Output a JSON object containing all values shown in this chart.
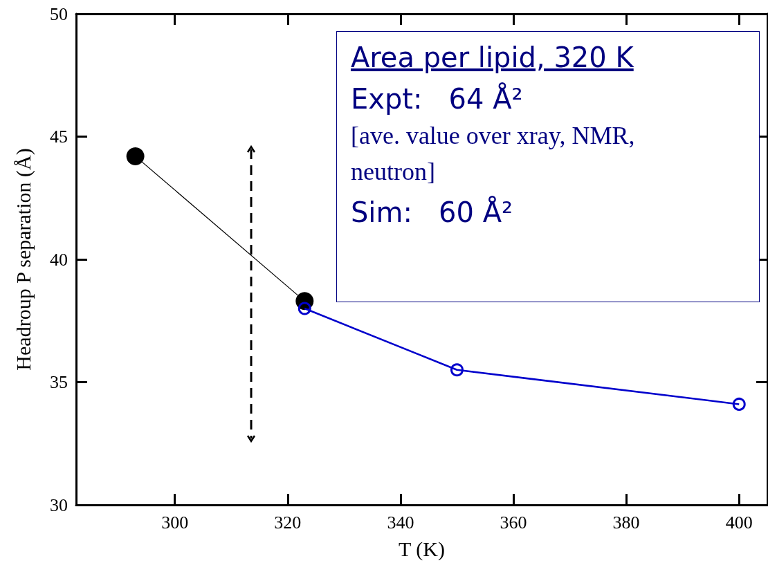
{
  "chart_data": {
    "type": "line",
    "xlabel": "T (K)",
    "ylabel": "Headroup P separation (Å)",
    "xlim": [
      282.5,
      405
    ],
    "xticks": [
      300,
      320,
      340,
      360,
      380,
      400
    ],
    "ylim": [
      30,
      50
    ],
    "yticks": [
      30,
      35,
      40,
      45,
      50
    ],
    "grid": false,
    "marker": "circle",
    "line_style": "solid",
    "series": [
      {
        "color": "#000000",
        "x": [
          293,
          323
        ],
        "values": [
          44.2,
          38.3
        ]
      },
      {
        "color": "#0000cc",
        "x": [
          323,
          350,
          400
        ],
        "values": [
          38.0,
          35.5,
          34.1
        ]
      }
    ],
    "annotations": [
      "Area per lipid, 320 K",
      "Expt:   64 Å²",
      "[ave. value over xray, NMR, neutron]",
      "Sim:   60 Å²"
    ]
  }
}
